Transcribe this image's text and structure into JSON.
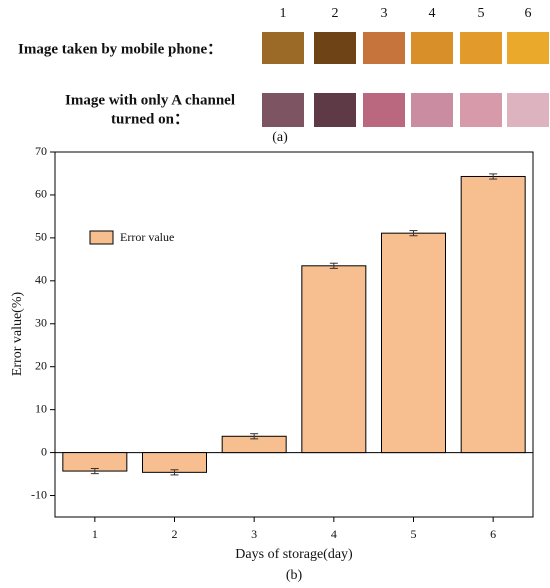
{
  "panel_a": {
    "column_numbers": [
      "1",
      "2",
      "3",
      "4",
      "5",
      "6"
    ],
    "row1_label": "Image taken by mobile phone：",
    "row2_label_lines": [
      "Image with only A channel",
      "turned on："
    ],
    "caption": "(a)"
  },
  "chart_data": {
    "type": "bar",
    "categories": [
      "1",
      "2",
      "3",
      "4",
      "5",
      "6"
    ],
    "series": [
      {
        "name": "Error value",
        "color": "#f7bf8f",
        "values": [
          -4.3,
          -4.6,
          3.8,
          43.5,
          51.1,
          64.3
        ],
        "errors": [
          0.6,
          0.6,
          0.6,
          0.6,
          0.6,
          0.6
        ]
      }
    ],
    "ylim": [
      -15,
      70
    ],
    "yticks": [
      -10,
      0,
      10,
      20,
      30,
      40,
      50,
      60,
      70
    ],
    "xlabel": "Days of storage(day)",
    "ylabel": "Error value(%)",
    "caption": "(b)",
    "legend": "upper left"
  }
}
